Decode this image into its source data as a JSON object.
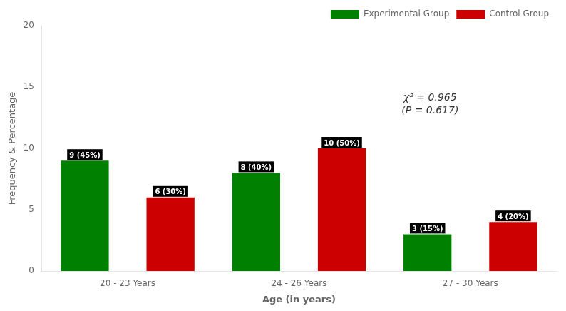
{
  "chart_data": {
    "type": "bar",
    "categories": [
      "20 - 23 Years",
      "24 - 26 Years",
      "27 - 30 Years"
    ],
    "series": [
      {
        "name": "Experimental Group",
        "color": "#008000",
        "values": [
          9,
          8,
          3
        ],
        "value_labels": [
          "9 (45%)",
          "8 (40%)",
          "3 (15%)"
        ]
      },
      {
        "name": "Control Group",
        "color": "#cc0000",
        "values": [
          6,
          10,
          4
        ],
        "value_labels": [
          "6 (30%)",
          "10 (50%)",
          "4 (20%)"
        ]
      }
    ],
    "xlabel": "Age (in years)",
    "ylabel": "Frequency & Percentage",
    "ylim": [
      0,
      20
    ],
    "yticks": [
      0,
      5,
      10,
      15,
      20
    ],
    "grid": false,
    "legend": "upper right",
    "data_labels": true,
    "annotation": [
      "χ² = 0.965",
      "(P = 0.617)"
    ]
  }
}
